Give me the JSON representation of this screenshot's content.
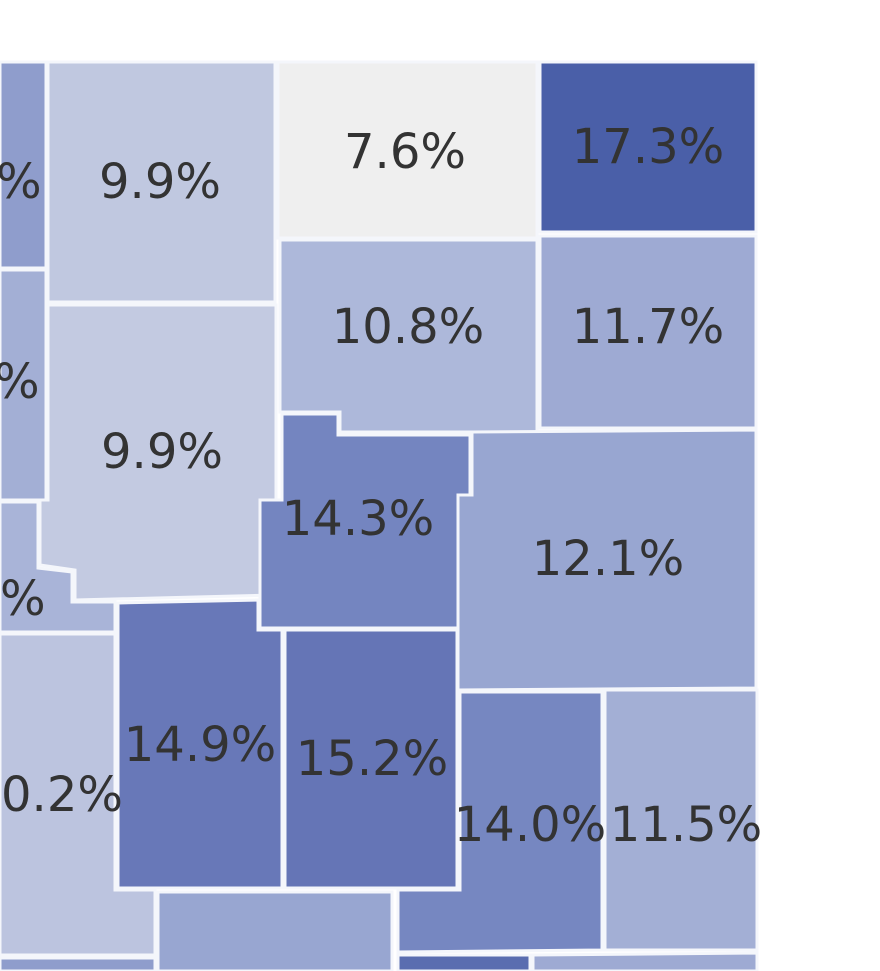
{
  "regions": [
    {
      "label": "%",
      "color": "#8f9dcc"
    },
    {
      "label": "9.9%",
      "color": "#c0c8e0"
    },
    {
      "label": "7.6%",
      "color": "#efefef"
    },
    {
      "label": "17.3%",
      "color": "#4a5fa8"
    },
    {
      "label": "%",
      "color": "#a3afd5"
    },
    {
      "label": "9.9%",
      "color": "#c3cae1"
    },
    {
      "label": "10.8%",
      "color": "#adb8da"
    },
    {
      "label": "11.7%",
      "color": "#9eaad3"
    },
    {
      "label": "14.3%",
      "color": "#7485c0"
    },
    {
      "label": "12.1%",
      "color": "#98a6d1"
    },
    {
      "label": "%",
      "color": "#a9b4d8"
    },
    {
      "label": "0.2%",
      "color": "#bcc4df"
    },
    {
      "label": "14.9%",
      "color": "#6878b8"
    },
    {
      "label": "15.2%",
      "color": "#6575b6"
    },
    {
      "label": "14.0%",
      "color": "#7687c1"
    },
    {
      "label": "11.5%",
      "color": "#a3afd5"
    },
    {
      "color": "#98a6d1"
    },
    {
      "color": "#8f9dcc"
    },
    {
      "color": "#5a6db0"
    },
    {
      "color": "#9eaad3"
    }
  ]
}
